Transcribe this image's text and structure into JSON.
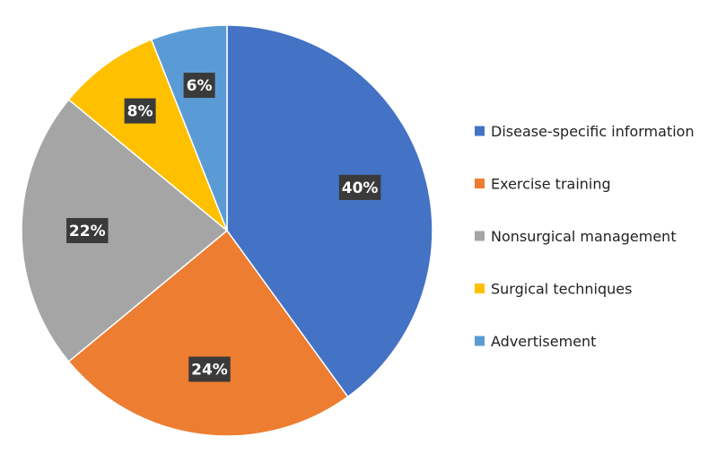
{
  "chart_data": {
    "type": "pie",
    "title": "",
    "legend_position": "right",
    "categories": [
      "Disease-specific information",
      "Exercise training",
      "Nonsurgical management",
      "Surgical techniques",
      "Advertisement"
    ],
    "values": [
      40,
      24,
      22,
      8,
      6
    ],
    "labels": [
      "40%",
      "24%",
      "22%",
      "8%",
      "6%"
    ],
    "colors": [
      "#4472C4",
      "#ED7D31",
      "#A5A5A5",
      "#FFC000",
      "#5B9BD5"
    ],
    "start_angle_deg": 0,
    "direction": "clockwise"
  }
}
